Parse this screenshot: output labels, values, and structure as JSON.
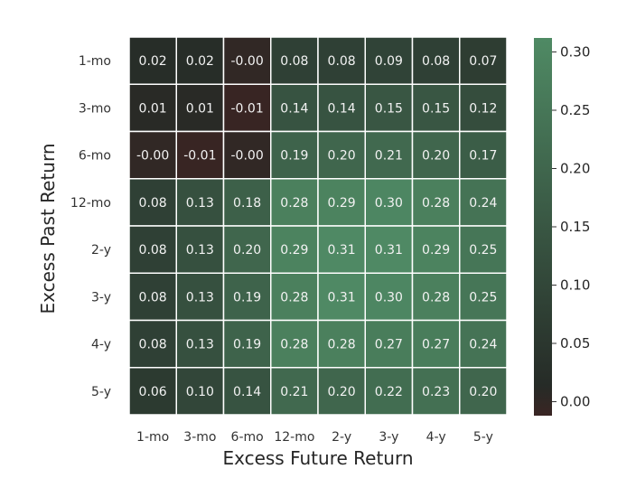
{
  "chart_data": {
    "type": "heatmap",
    "title": "",
    "xlabel": "Excess Future Return",
    "ylabel": "Excess Past Return",
    "x_categories": [
      "1-mo",
      "3-mo",
      "6-mo",
      "12-mo",
      "2-y",
      "3-y",
      "4-y",
      "5-y"
    ],
    "y_categories": [
      "1-mo",
      "3-mo",
      "6-mo",
      "12-mo",
      "2-y",
      "3-y",
      "4-y",
      "5-y"
    ],
    "values": [
      [
        0.02,
        0.02,
        -0.0,
        0.08,
        0.08,
        0.09,
        0.08,
        0.07
      ],
      [
        0.01,
        0.01,
        -0.01,
        0.14,
        0.14,
        0.15,
        0.15,
        0.12
      ],
      [
        -0.0,
        -0.01,
        -0.0,
        0.19,
        0.2,
        0.21,
        0.2,
        0.17
      ],
      [
        0.08,
        0.13,
        0.18,
        0.28,
        0.29,
        0.3,
        0.28,
        0.24
      ],
      [
        0.08,
        0.13,
        0.2,
        0.29,
        0.31,
        0.31,
        0.29,
        0.25
      ],
      [
        0.08,
        0.13,
        0.19,
        0.28,
        0.31,
        0.3,
        0.28,
        0.25
      ],
      [
        0.08,
        0.13,
        0.19,
        0.28,
        0.28,
        0.27,
        0.27,
        0.24
      ],
      [
        0.06,
        0.1,
        0.14,
        0.21,
        0.2,
        0.22,
        0.23,
        0.2
      ]
    ],
    "cell_labels": [
      [
        "0.02",
        "0.02",
        "-0.00",
        "0.08",
        "0.08",
        "0.09",
        "0.08",
        "0.07"
      ],
      [
        "0.01",
        "0.01",
        "-0.01",
        "0.14",
        "0.14",
        "0.15",
        "0.15",
        "0.12"
      ],
      [
        "-0.00",
        "-0.01",
        "-0.00",
        "0.19",
        "0.20",
        "0.21",
        "0.20",
        "0.17"
      ],
      [
        "0.08",
        "0.13",
        "0.18",
        "0.28",
        "0.29",
        "0.30",
        "0.28",
        "0.24"
      ],
      [
        "0.08",
        "0.13",
        "0.20",
        "0.29",
        "0.31",
        "0.31",
        "0.29",
        "0.25"
      ],
      [
        "0.08",
        "0.13",
        "0.19",
        "0.28",
        "0.31",
        "0.30",
        "0.28",
        "0.25"
      ],
      [
        "0.08",
        "0.13",
        "0.19",
        "0.28",
        "0.28",
        "0.27",
        "0.27",
        "0.24"
      ],
      [
        "0.06",
        "0.10",
        "0.14",
        "0.21",
        "0.20",
        "0.22",
        "0.23",
        "0.20"
      ]
    ],
    "colorbar": {
      "range": [
        -0.012,
        0.312
      ],
      "ticks": [
        0.0,
        0.05,
        0.1,
        0.15,
        0.2,
        0.25,
        0.3
      ],
      "tick_labels": [
        "0.00",
        "0.05",
        "0.10",
        "0.15",
        "0.20",
        "0.25",
        "0.30"
      ],
      "colors": [
        "#3a2523",
        "#262b27",
        "#4f8a64"
      ]
    },
    "grid": false,
    "legend": "colorbar-right"
  }
}
